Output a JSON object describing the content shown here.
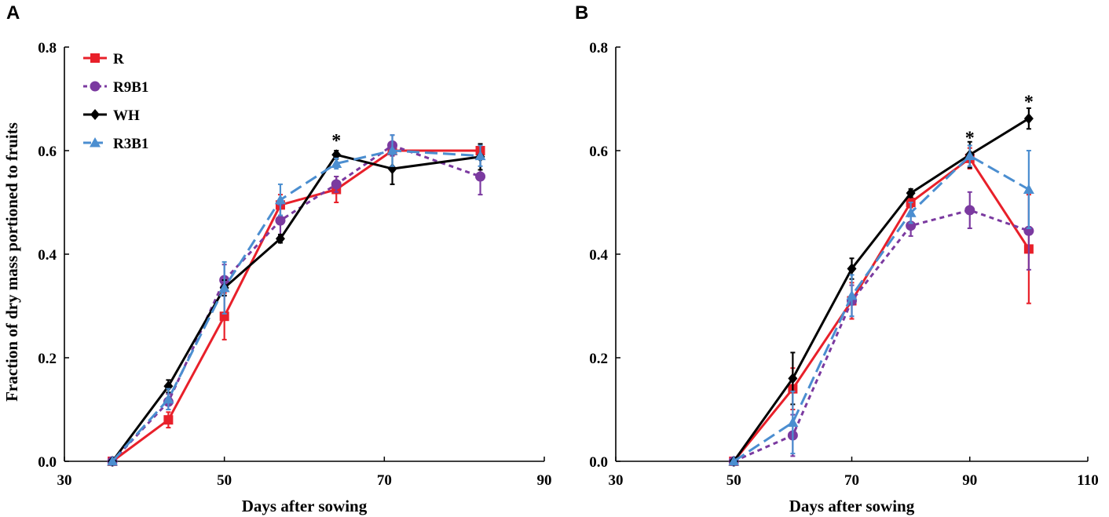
{
  "series_styles": [
    {
      "name": "R",
      "color": "#e8202a",
      "marker": "square",
      "dash": "none"
    },
    {
      "name": "R9B1",
      "color": "#7b3aa0",
      "marker": "circle",
      "dash": "short"
    },
    {
      "name": "WH",
      "color": "#000000",
      "marker": "diamond",
      "dash": "none"
    },
    {
      "name": "R3B1",
      "color": "#4b8ed0",
      "marker": "triangle",
      "dash": "long"
    }
  ],
  "chart_data": [
    {
      "type": "line",
      "panel_label": "A",
      "xlabel": "Days after sowing",
      "ylabel": "Fraction of dry mass portioned to fruits",
      "xlim": [
        30,
        90
      ],
      "ylim": [
        0,
        0.8
      ],
      "xticks": [
        30,
        50,
        70,
        90
      ],
      "xtick_labels": [
        "30",
        "50",
        "70",
        "90"
      ],
      "yticks": [
        0,
        0.2,
        0.4,
        0.6,
        0.8
      ],
      "ytick_labels": [
        "0.0",
        "0.2",
        "0.4",
        "0.6",
        "0.8"
      ],
      "legend": {
        "position": "top-left",
        "entries": [
          "R",
          "R9B1",
          "WH",
          "R3B1"
        ]
      },
      "annotations": [
        {
          "text": "*",
          "x": 64,
          "y": 0.62
        }
      ],
      "series": [
        {
          "name": "R",
          "x": [
            36,
            43,
            50,
            57,
            64,
            71,
            82
          ],
          "y": [
            0.0,
            0.08,
            0.28,
            0.495,
            0.525,
            0.6,
            0.6
          ],
          "err": [
            0,
            0.015,
            0.045,
            0.02,
            0.025,
            0.01,
            0.01
          ]
        },
        {
          "name": "R9B1",
          "x": [
            36,
            43,
            50,
            57,
            64,
            71,
            82
          ],
          "y": [
            0.0,
            0.115,
            0.35,
            0.465,
            0.535,
            0.61,
            0.55
          ],
          "err": [
            0,
            0.015,
            0.03,
            0.03,
            0.015,
            0.02,
            0.035
          ]
        },
        {
          "name": "WH",
          "x": [
            36,
            43,
            50,
            57,
            64,
            71,
            82
          ],
          "y": [
            0.0,
            0.145,
            0.335,
            0.43,
            0.592,
            0.565,
            0.588
          ],
          "err": [
            0,
            0.012,
            0.015,
            0.008,
            0.008,
            0.03,
            0.025
          ]
        },
        {
          "name": "R3B1",
          "x": [
            36,
            43,
            50,
            57,
            64,
            71,
            82
          ],
          "y": [
            0.0,
            0.12,
            0.335,
            0.505,
            0.575,
            0.6,
            0.59
          ],
          "err": [
            0,
            0.02,
            0.05,
            0.03,
            0.01,
            0.03,
            0.02
          ]
        }
      ]
    },
    {
      "type": "line",
      "panel_label": "B",
      "xlabel": "Days after sowing",
      "ylabel": "",
      "xlim": [
        30,
        110
      ],
      "ylim": [
        0,
        0.8
      ],
      "xticks": [
        30,
        50,
        70,
        90,
        110
      ],
      "xtick_labels": [
        "30",
        "50",
        "70",
        "90",
        "110"
      ],
      "yticks": [
        0,
        0.2,
        0.4,
        0.6,
        0.8
      ],
      "ytick_labels": [
        "0.0",
        "0.2",
        "0.4",
        "0.6",
        "0.8"
      ],
      "annotations": [
        {
          "text": "*",
          "x": 90,
          "y": 0.625
        },
        {
          "text": "*",
          "x": 100,
          "y": 0.695
        }
      ],
      "series": [
        {
          "name": "R",
          "x": [
            50,
            60,
            70,
            80,
            90,
            100
          ],
          "y": [
            0.0,
            0.14,
            0.31,
            0.5,
            0.585,
            0.41
          ],
          "err": [
            0,
            0.04,
            0.035,
            0.01,
            0.02,
            0.105
          ]
        },
        {
          "name": "R9B1",
          "x": [
            50,
            60,
            70,
            80,
            90,
            100
          ],
          "y": [
            0.0,
            0.05,
            0.31,
            0.455,
            0.485,
            0.445
          ],
          "err": [
            0,
            0.04,
            0.03,
            0.02,
            0.035,
            0.075
          ]
        },
        {
          "name": "WH",
          "x": [
            50,
            60,
            70,
            80,
            90,
            100
          ],
          "y": [
            0.0,
            0.16,
            0.372,
            0.518,
            0.592,
            0.662
          ],
          "err": [
            0,
            0.05,
            0.02,
            0.008,
            0.025,
            0.02
          ]
        },
        {
          "name": "R3B1",
          "x": [
            50,
            60,
            70,
            80,
            90,
            100
          ],
          "y": [
            0.0,
            0.075,
            0.32,
            0.48,
            0.59,
            0.525
          ],
          "err": [
            0,
            0.06,
            0.04,
            0.02,
            0.02,
            0.075
          ]
        }
      ]
    }
  ]
}
